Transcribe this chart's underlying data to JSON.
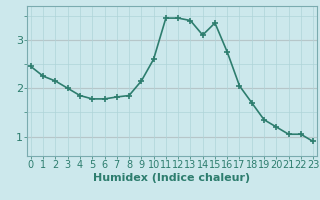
{
  "x": [
    0,
    1,
    2,
    3,
    4,
    5,
    6,
    7,
    8,
    9,
    10,
    11,
    12,
    13,
    14,
    15,
    16,
    17,
    18,
    19,
    20,
    21,
    22,
    23
  ],
  "y": [
    2.45,
    2.25,
    2.15,
    2.0,
    1.85,
    1.78,
    1.78,
    1.82,
    1.85,
    2.15,
    2.6,
    3.45,
    3.45,
    3.4,
    3.1,
    3.35,
    2.75,
    2.05,
    1.7,
    1.35,
    1.2,
    1.05,
    1.05,
    0.9
  ],
  "line_color": "#2d7d6e",
  "bg_color": "#cce8ec",
  "grid_color_minor": "#afd4d8",
  "grid_color_major": "#c8a8a8",
  "xlabel": "Humidex (Indice chaleur)",
  "yticks": [
    1,
    2,
    3
  ],
  "xticks": [
    0,
    1,
    2,
    3,
    4,
    5,
    6,
    7,
    8,
    9,
    10,
    11,
    12,
    13,
    14,
    15,
    16,
    17,
    18,
    19,
    20,
    21,
    22,
    23
  ],
  "xlim": [
    -0.3,
    23.3
  ],
  "ylim": [
    0.6,
    3.7
  ],
  "marker": "+",
  "marker_size": 4,
  "linewidth": 1.2,
  "tick_fontsize": 7,
  "label_fontsize": 8
}
